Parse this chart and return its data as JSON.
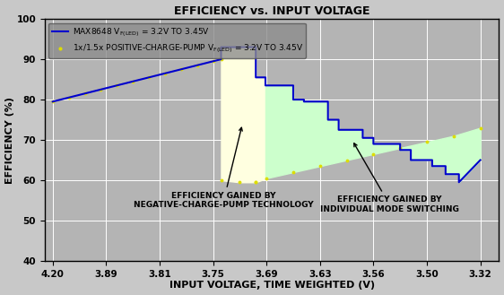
{
  "title": "EFFICIENCY vs. INPUT VOLTAGE",
  "xlabel": "INPUT VOLTAGE, TIME WEIGHTED (V)",
  "ylabel": "EFFICIENCY (%)",
  "ylim": [
    40,
    100
  ],
  "xtick_labels": [
    "4.20",
    "3.89",
    "3.81",
    "3.75",
    "3.69",
    "3.63",
    "3.56",
    "3.50",
    "3.32"
  ],
  "xtick_positions": [
    0,
    1,
    2,
    3,
    4,
    5,
    6,
    7,
    8
  ],
  "ytick_positions": [
    40,
    50,
    60,
    70,
    80,
    90,
    100
  ],
  "bg_color": "#c8c8c8",
  "plot_bg_color": "#b4b4b4",
  "legend_bg_color": "#9e9e9e",
  "blue_line_color": "#0000cc",
  "yellow_dot_color": "#dddd00",
  "yellow_fill_color": "#ffffe0",
  "green_fill_color": "#ccffcc",
  "annotation1": "EFFICIENCY GAINED BY\nNEGATIVE-CHARGE-PUMP TECHNOLOGY",
  "annotation2": "EFFICIENCY GAINED BY\nINDIVIDUAL MODE SWITCHING",
  "blue_x": [
    0.0,
    0.3,
    0.6,
    0.9,
    1.2,
    1.5,
    1.8,
    2.1,
    2.4,
    2.7,
    3.0,
    3.15,
    3.15,
    3.8,
    3.8,
    3.8,
    3.98,
    3.98,
    3.98,
    4.5,
    4.5,
    4.5,
    4.7,
    4.7,
    4.7,
    5.15,
    5.15,
    5.15,
    5.35,
    5.35,
    5.35,
    5.8,
    5.8,
    5.8,
    6.0,
    6.0,
    6.0,
    6.5,
    6.5,
    6.5,
    6.7,
    6.7,
    6.7,
    7.1,
    7.1,
    7.1,
    7.35,
    7.35,
    7.35,
    7.6,
    7.6,
    7.6,
    8.0
  ],
  "blue_y": [
    79.5,
    80.5,
    81.5,
    82.5,
    83.5,
    84.5,
    85.5,
    86.5,
    87.5,
    88.5,
    89.5,
    90.0,
    93.0,
    93.0,
    85.5,
    85.5,
    85.5,
    83.5,
    83.5,
    83.5,
    80.0,
    80.0,
    80.0,
    79.5,
    79.5,
    79.5,
    75.0,
    75.0,
    75.0,
    72.5,
    72.5,
    72.5,
    70.5,
    70.5,
    70.5,
    69.0,
    69.0,
    69.0,
    67.5,
    67.5,
    67.5,
    65.0,
    65.0,
    65.0,
    63.5,
    63.5,
    63.5,
    61.5,
    61.5,
    61.5,
    59.5,
    59.5,
    65.0
  ],
  "yel_x": [
    0.0,
    0.3,
    0.6,
    0.9,
    1.2,
    1.5,
    1.8,
    2.1,
    2.4,
    2.7,
    3.0,
    3.15,
    3.15,
    3.5,
    3.8,
    3.8,
    4.0,
    4.5,
    5.0,
    5.5,
    6.0,
    6.5,
    7.0,
    7.5,
    8.0
  ],
  "yel_y": [
    79.5,
    80.5,
    81.5,
    82.5,
    83.5,
    84.5,
    85.5,
    86.5,
    87.5,
    88.5,
    89.5,
    90.0,
    60.0,
    59.5,
    59.5,
    59.5,
    60.5,
    62.0,
    63.5,
    65.0,
    66.5,
    68.0,
    69.5,
    71.0,
    73.0
  ],
  "fill1_xstart": 3.15,
  "fill1_xend": 3.98,
  "fill2_xstart": 3.98,
  "fill2_xend": 8.0
}
